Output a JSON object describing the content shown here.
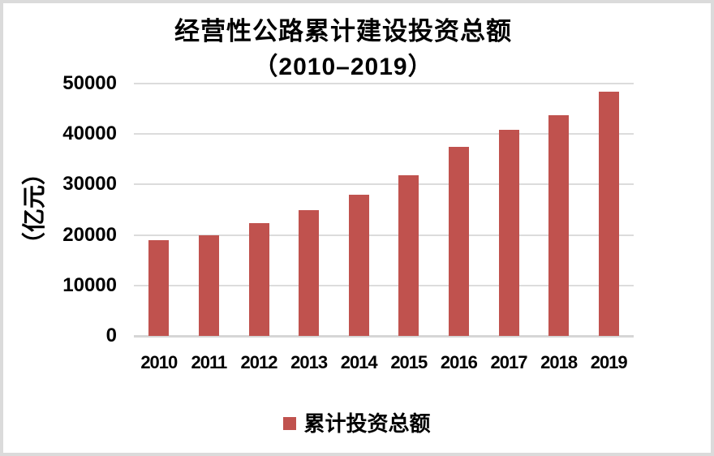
{
  "title": {
    "line1": "经营性公路累计建设投资总额",
    "line2": "（2010–2019）"
  },
  "y_axis": {
    "label": "（亿元）"
  },
  "legend": {
    "label": "累计投资总额"
  },
  "colors": {
    "bar": "#C0524E",
    "gridline": "#DCDCDC",
    "axis_line": "#D6D6D6",
    "frame_border": "#DBDBDB",
    "text": "#000000"
  },
  "chart_data": {
    "type": "bar",
    "title": "经营性公路累计建设投资总额（2010–2019）",
    "categories": [
      "2010",
      "2011",
      "2012",
      "2013",
      "2014",
      "2015",
      "2016",
      "2017",
      "2018",
      "2019"
    ],
    "values": [
      18900,
      19900,
      22300,
      25000,
      27900,
      31900,
      37500,
      40800,
      43700,
      48400
    ],
    "series_name": "累计投资总额",
    "xlabel": "",
    "ylabel": "（亿元）",
    "ylim": [
      0,
      50000
    ],
    "ytick_interval": 10000,
    "ytick_labels": [
      "0",
      "10000",
      "20000",
      "30000",
      "40000",
      "50000"
    ],
    "grid": true,
    "legend_position": "bottom",
    "bar_color": "#C0524E"
  }
}
